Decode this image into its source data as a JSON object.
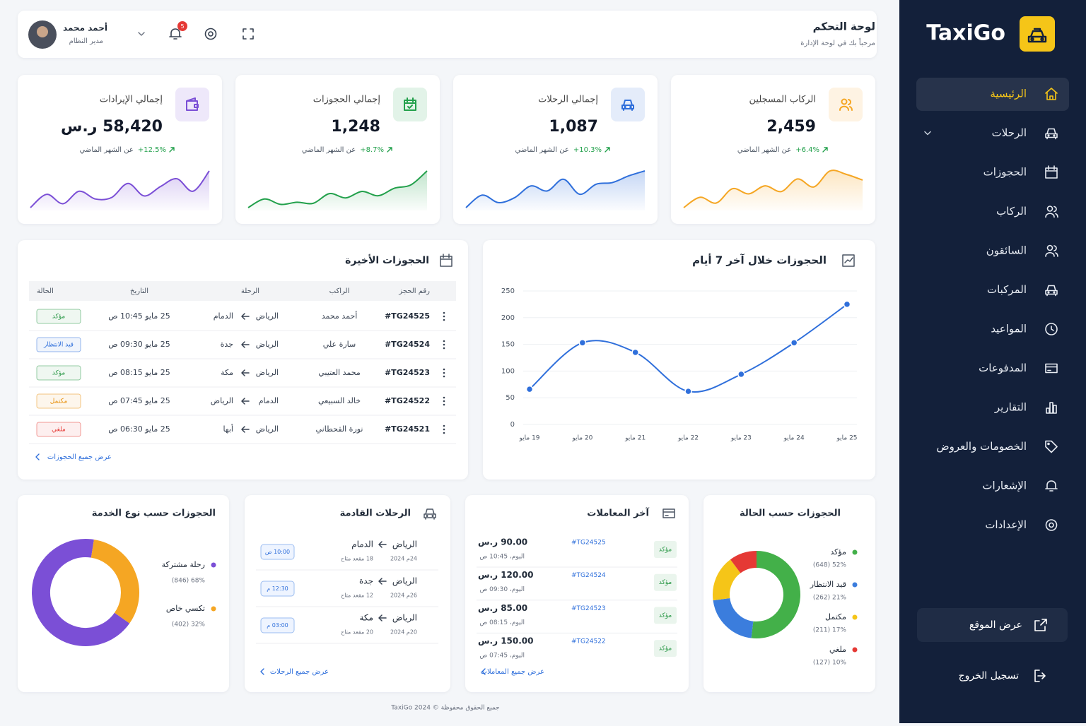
{
  "sidebar": {
    "brand": "TaxiGo",
    "menu": [
      "الرئيسية",
      "الرحلات",
      "الحجوزات",
      "الركاب",
      "السائقون",
      "المركبات",
      "المواعيد",
      "المدفوعات",
      "التقارير",
      "الخصومات والعروض",
      "الإشعارات",
      "الإعدادات"
    ],
    "active": 0,
    "view_site": "عرض الموقع",
    "logout": "تسجيل الخروج"
  },
  "header": {
    "title": "لوحة التحكم",
    "subtitle": "مرحباً بك في لوحة الإدارة",
    "user_name": "أحمد محمد",
    "user_role": "مدير النظام",
    "notification_count": 5
  },
  "stats": [
    {
      "label": "الركاب المسجلين",
      "value": "2,459",
      "change": "+6.4%",
      "period": "عن الشهر الماضي",
      "color": "#f5a623",
      "sparkline": [
        22,
        40,
        30,
        55,
        46,
        60,
        50,
        72,
        58,
        86,
        80,
        70
      ]
    },
    {
      "label": "إجمالي الرحلات",
      "value": "1,087",
      "change": "+10.3%",
      "period": "عن الشهر الماضي",
      "color": "#2f6fdb",
      "sparkline": [
        30,
        45,
        36,
        42,
        56,
        50,
        64,
        46,
        58,
        60,
        68,
        74
      ]
    },
    {
      "label": "إجمالي الحجوزات",
      "value": "1,248",
      "change": "+8.7%",
      "period": "عن الشهر الماضي",
      "color": "#22a04b",
      "sparkline": [
        20,
        36,
        26,
        30,
        28,
        46,
        38,
        50,
        42,
        56,
        62,
        88
      ]
    },
    {
      "label": "إجمالي الإيرادات",
      "value": "58,420 ر.س",
      "change": "+12.5%",
      "period": "عن الشهر الماضي",
      "color": "#7b4fd6",
      "sparkline": [
        25,
        42,
        30,
        46,
        36,
        38,
        56,
        40,
        52,
        62,
        46,
        72
      ]
    }
  ],
  "recent_bookings": {
    "title": "الحجوزات الأخيرة",
    "columns": [
      "رقم الحجز",
      "الراكب",
      "الرحلة",
      "التاريخ",
      "الحالة"
    ],
    "rows": [
      {
        "id": "#TG24525",
        "passenger": "أحمد محمد",
        "from": "الرياض",
        "to": "الدمام",
        "date": "25 مايو 10:45 ص",
        "status": "مؤكد"
      },
      {
        "id": "#TG24524",
        "passenger": "سارة علي",
        "from": "الرياض",
        "to": "جدة",
        "date": "25 مايو 09:30 ص",
        "status": "قيد الانتظار"
      },
      {
        "id": "#TG24523",
        "passenger": "محمد العتيبي",
        "from": "الرياض",
        "to": "مكة",
        "date": "25 مايو 08:15 ص",
        "status": "مؤكد"
      },
      {
        "id": "#TG24522",
        "passenger": "خالد السبيعي",
        "from": "الدمام",
        "to": "الرياض",
        "date": "25 مايو 07:45 ص",
        "status": "مكتمل"
      },
      {
        "id": "#TG24521",
        "passenger": "نورة القحطاني",
        "from": "الرياض",
        "to": "أبها",
        "date": "25 مايو 06:30 ص",
        "status": "ملغي"
      }
    ],
    "link": "عرض جميع الحجوزات"
  },
  "status_colors": {
    "مؤكد": "#2e9a4a",
    "قيد الانتظار": "#2f6fdb",
    "مكتمل": "#e8900c",
    "ملغي": "#e53935"
  },
  "bookings_chart": {
    "type": "line",
    "title": "الحجوزات خلال آخر 7 أيام",
    "categories": [
      "19 مايو",
      "20 مايو",
      "21 مايو",
      "22 مايو",
      "23 مايو",
      "24 مايو",
      "25 مايو"
    ],
    "values": [
      66,
      153,
      135,
      62,
      94,
      153,
      225
    ],
    "color": "#2f6fdb",
    "ylim": [
      0,
      250
    ],
    "yticks": [
      0,
      50,
      100,
      150,
      200,
      250
    ],
    "grid": true
  },
  "status_chart": {
    "type": "donut",
    "title": "الحجوزات حسب الحالة",
    "categories": [
      "مؤكد",
      "قيد الانتظار",
      "مكتمل",
      "ملغي"
    ],
    "values": [
      648,
      262,
      211,
      127
    ],
    "value_labels": [
      "52% (648)",
      "21% (262)",
      "17% (211)",
      "10% (127)"
    ],
    "colors": [
      "#43b049",
      "#3b7ddd",
      "#f5c518",
      "#e53935"
    ]
  },
  "transactions": {
    "title": "آخر المعاملات",
    "rows": [
      {
        "amount": "90.00 ر.س",
        "ref": "#TG24525",
        "time": "اليوم، 10:45 ص",
        "status": "مؤكد"
      },
      {
        "amount": "120.00 ر.س",
        "ref": "#TG24524",
        "time": "اليوم، 09:30 ص",
        "status": "مؤكد"
      },
      {
        "amount": "85.00 ر.س",
        "ref": "#TG24523",
        "time": "اليوم، 08:15 ص",
        "status": "مؤكد"
      },
      {
        "amount": "150.00 ر.س",
        "ref": "#TG24522",
        "time": "اليوم، 07:45 ص",
        "status": "مؤكد"
      }
    ],
    "link": "عرض جميع المعاملات"
  },
  "upcoming_trips": {
    "title": "الرحلات القادمة",
    "rows": [
      {
        "from": "الرياض",
        "to": "الدمام",
        "date": "24م 2024",
        "seats": "18 مقعد متاح",
        "time": "10:00 ص"
      },
      {
        "from": "الرياض",
        "to": "جدة",
        "date": "26م 2024",
        "seats": "12 مقعد متاح",
        "time": "12:30 م"
      },
      {
        "from": "الرياض",
        "to": "مكة",
        "date": "20م 2024",
        "seats": "20 مقعد متاح",
        "time": "03:00 م"
      }
    ],
    "link": "عرض جميع الرحلات"
  },
  "service_chart": {
    "type": "donut",
    "title": "الحجوزات حسب نوع الخدمة",
    "categories": [
      "رحلة مشتركة",
      "تكسي خاص"
    ],
    "values": [
      846,
      402
    ],
    "value_labels": [
      "68% (846)",
      "32% (402)"
    ],
    "colors": [
      "#7b4fd6",
      "#f5a623"
    ]
  },
  "footer": "جميع الحقوق محفوظة © 2024 TaxiGo"
}
